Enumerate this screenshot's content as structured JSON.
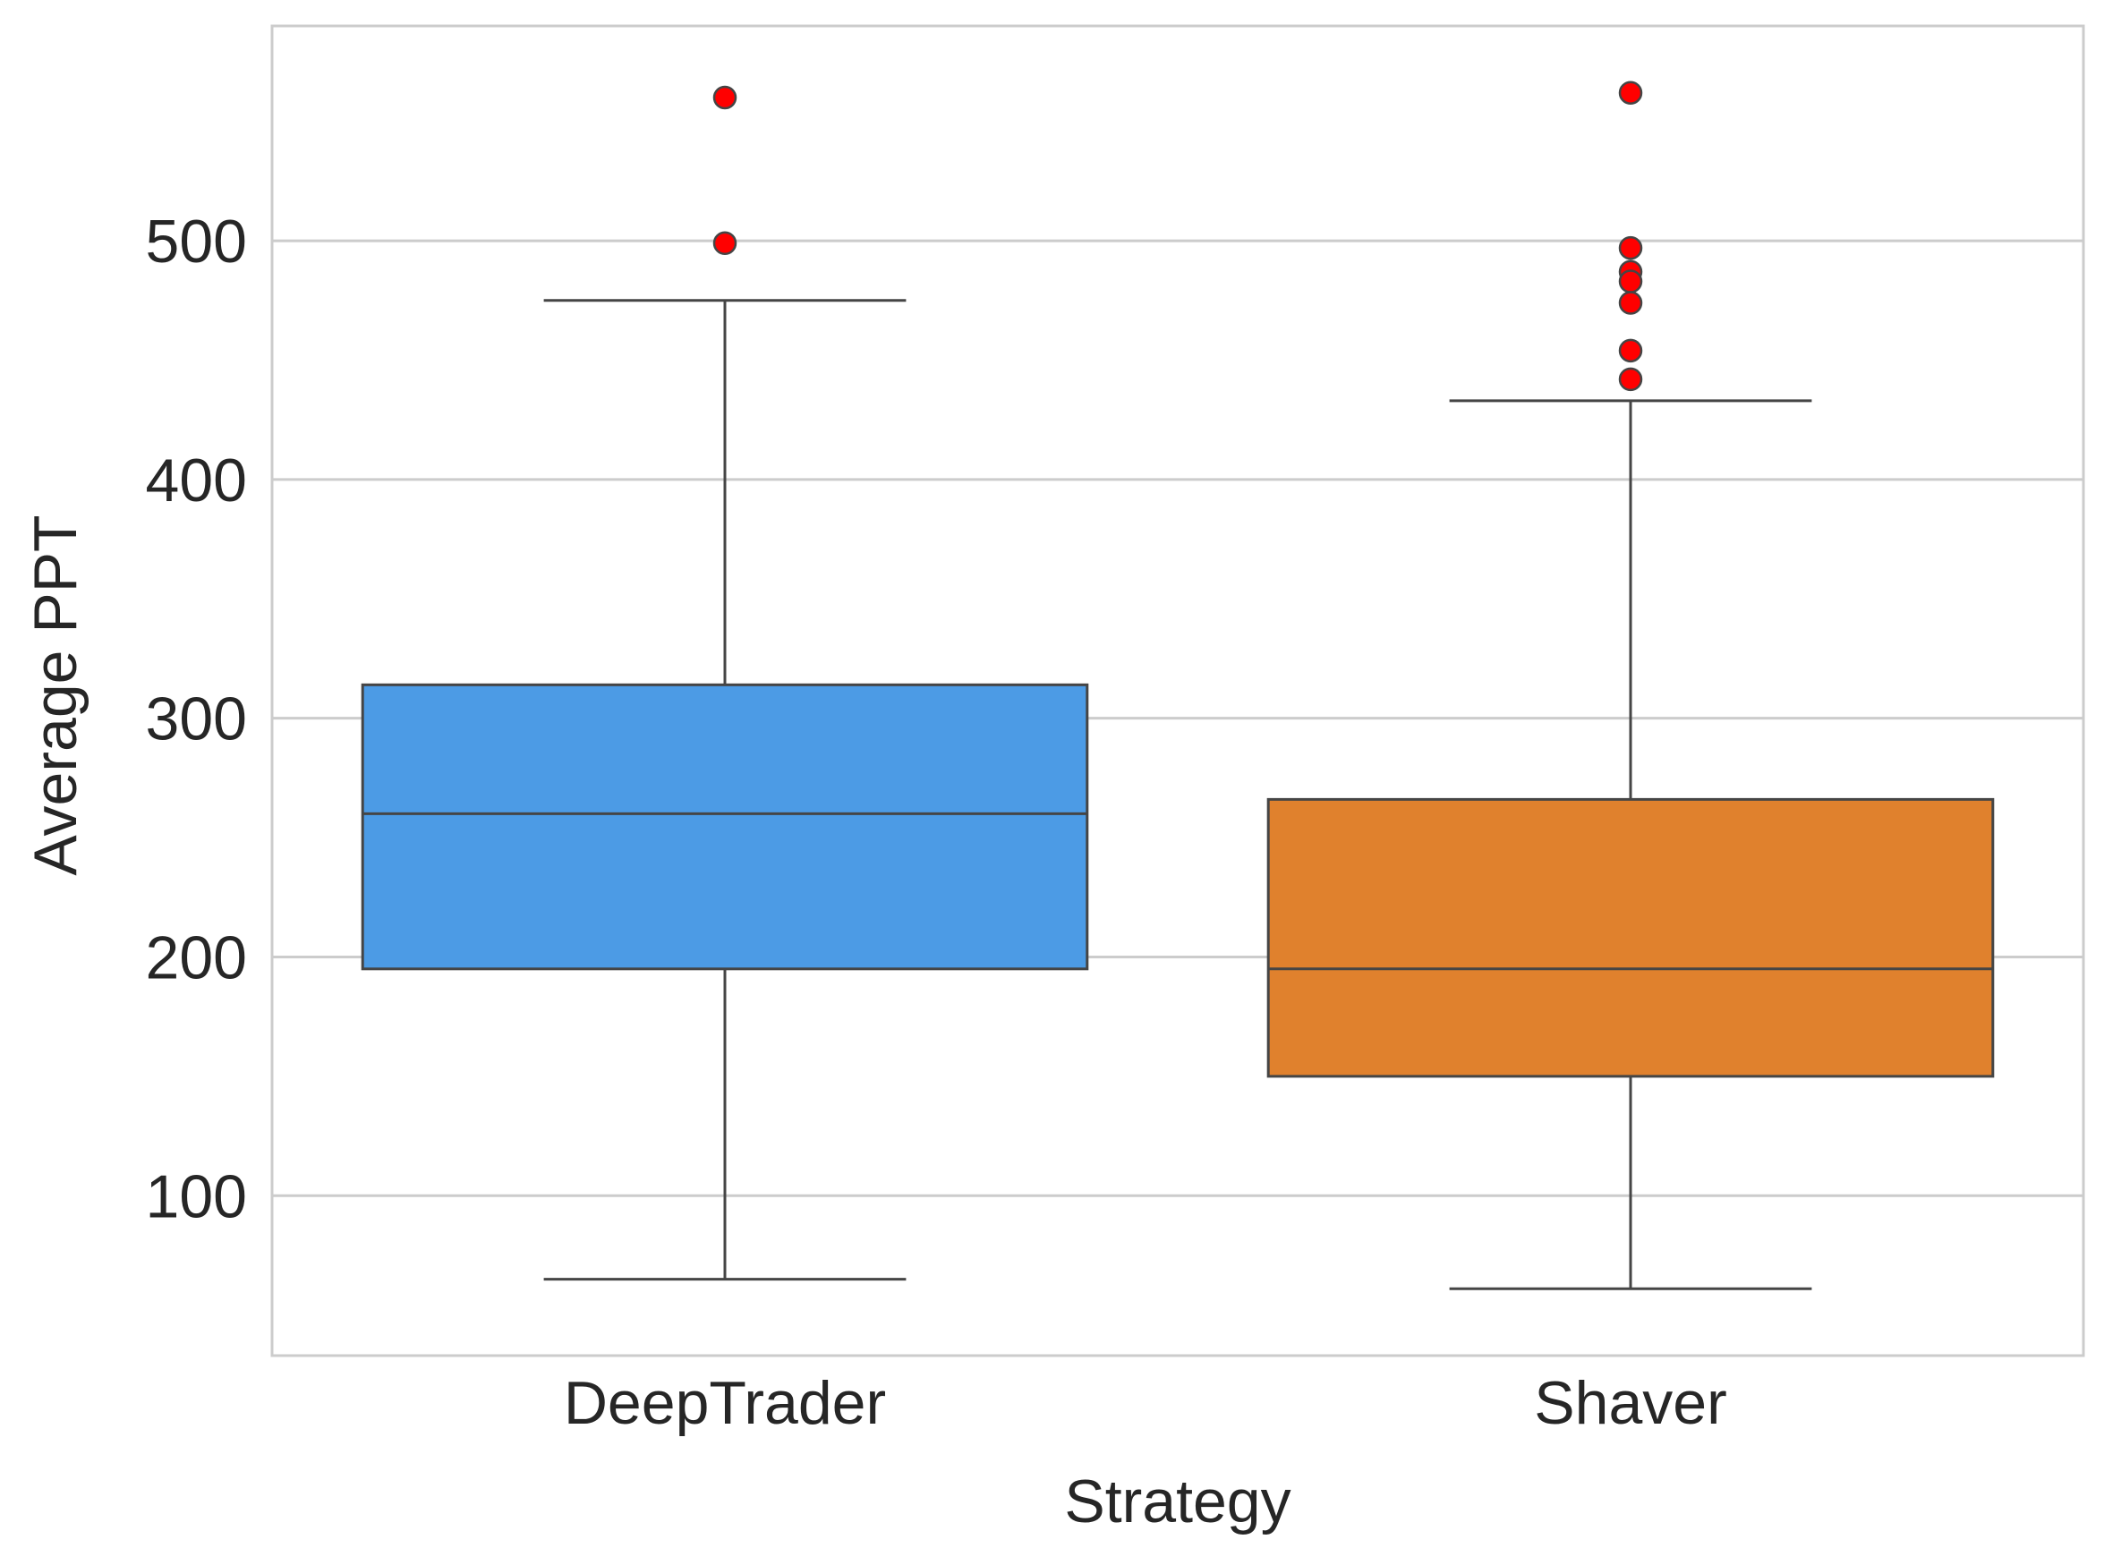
{
  "chart_data": {
    "type": "box",
    "title": "",
    "xlabel": "Strategy",
    "ylabel": "Average PPT",
    "ylim": [
      33,
      590
    ],
    "yticks": [
      100,
      200,
      300,
      400,
      500
    ],
    "grid": true,
    "legend": "none",
    "categories": [
      "DeepTrader",
      "Shaver"
    ],
    "series": [
      {
        "category": "DeepTrader",
        "color": "#4c9be5",
        "whisker_low": 65,
        "q1": 195,
        "median": 260,
        "q3": 314,
        "whisker_high": 475,
        "outliers": [
          560,
          499
        ]
      },
      {
        "category": "Shaver",
        "color": "#e0812d",
        "whisker_low": 61,
        "q1": 150,
        "median": 195,
        "q3": 266,
        "whisker_high": 433,
        "outliers": [
          562,
          497,
          487,
          483,
          474,
          454,
          442
        ]
      }
    ],
    "style": {
      "line_color": "#454545",
      "outlier_color": "#ff0000",
      "grid_color": "#cccccc",
      "frame_color": "#cccccc",
      "text_color": "#262626"
    }
  }
}
